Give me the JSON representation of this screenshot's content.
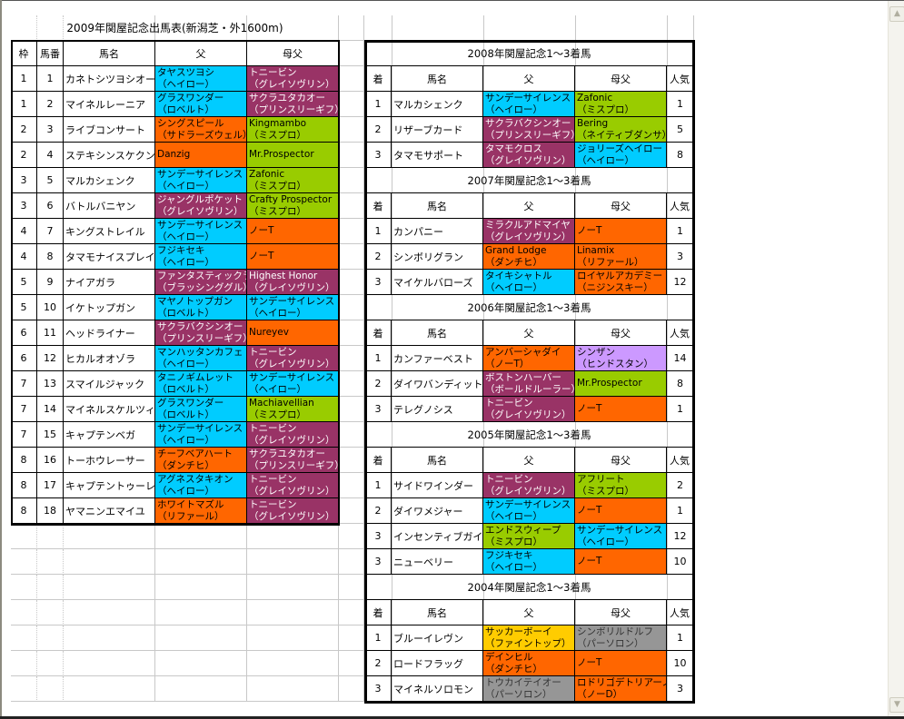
{
  "colors": {
    "B": "#00CCFF",
    "P": "#993366",
    "O": "#FF6600",
    "G": "#99CC00",
    "L": "#CC99FF",
    "Y": "#FFCC00",
    "X": "#969696"
  },
  "text_colors": {
    "B": "#000000",
    "P": "#FFFFFF",
    "O": "#000000",
    "G": "#000000",
    "L": "#000000",
    "Y": "#000000",
    "X": "#333333"
  },
  "main": {
    "title": "2009年関屋記念出馬表(新潟芝・外1600m)",
    "headers": [
      "枠",
      "馬番",
      "馬名",
      "父",
      "母父"
    ],
    "rows": [
      {
        "waku": "1",
        "num": "1",
        "name": "カネトシツヨシオー",
        "sire": [
          "タヤスツヨシ",
          "（ヘイロー）",
          "B"
        ],
        "dam_sire": [
          "トニービン",
          "（グレイソヴリン）",
          "P"
        ]
      },
      {
        "waku": "1",
        "num": "2",
        "name": "マイネルレーニア",
        "sire": [
          "グラスワンダー",
          "（ロベルト）",
          "B"
        ],
        "dam_sire": [
          "サクラユタカオー",
          "（プリンスリーギフ）",
          "P"
        ]
      },
      {
        "waku": "2",
        "num": "3",
        "name": "ライブコンサート",
        "sire": [
          "シングスピール",
          "（サドラーズウェル）",
          "O"
        ],
        "dam_sire": [
          "Kingmambo",
          "（ミスプロ）",
          "G"
        ]
      },
      {
        "waku": "2",
        "num": "4",
        "name": "ステキシンスケクン",
        "sire": [
          "Danzig",
          "",
          "O"
        ],
        "dam_sire": [
          "Mr.Prospector",
          "",
          "G"
        ]
      },
      {
        "waku": "3",
        "num": "5",
        "name": "マルカシェンク",
        "sire": [
          "サンデーサイレンス",
          "（ヘイロー）",
          "B"
        ],
        "dam_sire": [
          "Zafonic",
          "（ミスプロ）",
          "G"
        ]
      },
      {
        "waku": "3",
        "num": "6",
        "name": "バトルバニヤン",
        "sire": [
          "ジャングルポケット",
          "（グレイソヴリン）",
          "P"
        ],
        "dam_sire": [
          "Crafty Prospector",
          "（ミスプロ）",
          "G"
        ]
      },
      {
        "waku": "4",
        "num": "7",
        "name": "キングストレイル",
        "sire": [
          "サンデーサイレンス",
          "（ヘイロー）",
          "B"
        ],
        "dam_sire": [
          "ノーT",
          "",
          "O"
        ]
      },
      {
        "waku": "4",
        "num": "8",
        "name": "タマモナイスプレイ",
        "sire": [
          "フジキセキ",
          "（ヘイロー）",
          "B"
        ],
        "dam_sire": [
          "ノーT",
          "",
          "O"
        ]
      },
      {
        "waku": "5",
        "num": "9",
        "name": "ナイアガラ",
        "sire": [
          "ファンタスティックラ",
          "（ブラッシンググル）",
          "P"
        ],
        "dam_sire": [
          "Highest Honor",
          "（グレイソヴリン）",
          "P"
        ]
      },
      {
        "waku": "5",
        "num": "10",
        "name": "イケトップガン",
        "sire": [
          "マヤノトップガン",
          "（ロベルト）",
          "B"
        ],
        "dam_sire": [
          "サンデーサイレンス",
          "（ヘイロー）",
          "B"
        ]
      },
      {
        "waku": "6",
        "num": "11",
        "name": "ヘッドライナー",
        "sire": [
          "サクラバクシンオー",
          "（プリンスリーギフ）",
          "P"
        ],
        "dam_sire": [
          "Nureyev",
          "",
          "O"
        ]
      },
      {
        "waku": "6",
        "num": "12",
        "name": "ヒカルオオゾラ",
        "sire": [
          "マンハッタンカフェ",
          "（ヘイロー）",
          "B"
        ],
        "dam_sire": [
          "トニービン",
          "（グレイソヴリン）",
          "P"
        ]
      },
      {
        "waku": "7",
        "num": "13",
        "name": "スマイルジャック",
        "sire": [
          "タニノギムレット",
          "（ロベルト）",
          "B"
        ],
        "dam_sire": [
          "サンデーサイレンス",
          "（ヘイロー）",
          "B"
        ]
      },
      {
        "waku": "7",
        "num": "14",
        "name": "マイネルスケルツィ",
        "sire": [
          "グラスワンダー",
          "（ロベルト）",
          "B"
        ],
        "dam_sire": [
          "Machiavellian",
          "（ミスプロ）",
          "G"
        ]
      },
      {
        "waku": "7",
        "num": "15",
        "name": "キャプテンベガ",
        "sire": [
          "サンデーサイレンス",
          "（ヘイロー）",
          "B"
        ],
        "dam_sire": [
          "トニービン",
          "（グレイソヴリン）",
          "P"
        ]
      },
      {
        "waku": "8",
        "num": "16",
        "name": "トーホウレーサー",
        "sire": [
          "チーフベアハート",
          "（ダンチヒ）",
          "O"
        ],
        "dam_sire": [
          "サクラユタカオー",
          "（プリンスリーギフ）",
          "P"
        ]
      },
      {
        "waku": "8",
        "num": "17",
        "name": "キャプテントゥーレ",
        "sire": [
          "アグネスタキオン",
          "（ヘイロー）",
          "B"
        ],
        "dam_sire": [
          "トニービン",
          "（グレイソヴリン）",
          "P"
        ]
      },
      {
        "waku": "8",
        "num": "18",
        "name": "ヤマニンエマイユ",
        "sire": [
          "ホワイトマズル",
          "（リファール）",
          "O"
        ],
        "dam_sire": [
          "トニービン",
          "（グレイソヴリン）",
          "P"
        ]
      }
    ]
  },
  "past": {
    "headers": [
      "着",
      "馬名",
      "父",
      "母父",
      "人気"
    ],
    "years": [
      {
        "title": "2008年関屋記念1～3着馬",
        "rows": [
          {
            "pos": "1",
            "name": "マルカシェンク",
            "sire": [
              "サンデーサイレンス",
              "（ヘイロー）",
              "B"
            ],
            "dam_sire": [
              "Zafonic",
              "（ミスプロ）",
              "G"
            ],
            "pop": "1"
          },
          {
            "pos": "2",
            "name": "リザーブカード",
            "sire": [
              "サクラバクシンオー",
              "（プリンスリーギフ）",
              "P"
            ],
            "dam_sire": [
              "Bering",
              "（ネイティブダンサ）",
              "G"
            ],
            "pop": "5"
          },
          {
            "pos": "3",
            "name": "タマモサポート",
            "sire": [
              "タマモクロス",
              "（グレイソヴリン）",
              "P"
            ],
            "dam_sire": [
              "ジョリーズヘイロー",
              "（ヘイロー）",
              "B"
            ],
            "pop": "8"
          }
        ]
      },
      {
        "title": "2007年関屋記念1～3着馬",
        "rows": [
          {
            "pos": "1",
            "name": "カンパニー",
            "sire": [
              "ミラクルアドマイヤ",
              "（グレイソヴリン）",
              "P"
            ],
            "dam_sire": [
              "ノーT",
              "",
              "O"
            ],
            "pop": "1"
          },
          {
            "pos": "2",
            "name": "シンボリグラン",
            "sire": [
              "Grand Lodge",
              "（ダンチヒ）",
              "O"
            ],
            "dam_sire": [
              "Linamix",
              "（リファール）",
              "O"
            ],
            "pop": "3"
          },
          {
            "pos": "3",
            "name": "マイケルバローズ",
            "sire": [
              "タイキシャトル",
              "（ヘイロー）",
              "B"
            ],
            "dam_sire": [
              "ロイヤルアカデミー",
              "（ニジンスキー）",
              "O"
            ],
            "pop": "12"
          }
        ]
      },
      {
        "title": "2006年関屋記念1～3着馬",
        "rows": [
          {
            "pos": "1",
            "name": "カンファーベスト",
            "sire": [
              "アンバーシャダイ",
              "（ノーT）",
              "O"
            ],
            "dam_sire": [
              "シンザン",
              "（ヒンドスタン）",
              "L"
            ],
            "pop": "14"
          },
          {
            "pos": "2",
            "name": "ダイワバンディット",
            "sire": [
              "ボストンハーバー",
              "（ボールドルーラー）",
              "P"
            ],
            "dam_sire": [
              "Mr.Prospector",
              "",
              "G"
            ],
            "pop": "8"
          },
          {
            "pos": "3",
            "name": "テレグノシス",
            "sire": [
              "トニービン",
              "（グレイソヴリン）",
              "P"
            ],
            "dam_sire": [
              "ノーT",
              "",
              "O"
            ],
            "pop": "1"
          }
        ]
      },
      {
        "title": "2005年関屋記念1～3着馬",
        "rows": [
          {
            "pos": "1",
            "name": "サイドワインダー",
            "sire": [
              "トニービン",
              "（グレイソヴリン）",
              "P"
            ],
            "dam_sire": [
              "アフリート",
              "（ミスプロ）",
              "G"
            ],
            "pop": "2"
          },
          {
            "pos": "2",
            "name": "ダイワメジャー",
            "sire": [
              "サンデーサイレンス",
              "（ヘイロー）",
              "B"
            ],
            "dam_sire": [
              "ノーT",
              "",
              "O"
            ],
            "pop": "1"
          },
          {
            "pos": "3",
            "name": "インセンティブガイ",
            "sire": [
              "エンドスウィープ",
              "（ミスプロ）",
              "G"
            ],
            "dam_sire": [
              "サンデーサイレンス",
              "（ヘイロー）",
              "B"
            ],
            "pop": "12"
          },
          {
            "pos": "3",
            "name": "ニューベリー",
            "sire": [
              "フジキセキ",
              "（ヘイロー）",
              "B"
            ],
            "dam_sire": [
              "ノーT",
              "",
              "O"
            ],
            "pop": "10"
          }
        ]
      },
      {
        "title": "2004年関屋記念1～3着馬",
        "rows": [
          {
            "pos": "1",
            "name": "ブルーイレヴン",
            "sire": [
              "サッカーボーイ",
              "（ファイントップ）",
              "Y"
            ],
            "dam_sire": [
              "シンボリルドルフ",
              "（パーソロン）",
              "X"
            ],
            "pop": "1"
          },
          {
            "pos": "2",
            "name": "ロードフラッグ",
            "sire": [
              "デインヒル",
              "（ダンチヒ）",
              "O"
            ],
            "dam_sire": [
              "ノーT",
              "",
              "O"
            ],
            "pop": "10"
          },
          {
            "pos": "3",
            "name": "マイネルソロモン",
            "sire": [
              "トウカイテイオー",
              "（パーソロン）",
              "X"
            ],
            "dam_sire": [
              "ロドリゴデトリアーノ",
              "（ノーD）",
              "O"
            ],
            "pop": "3"
          }
        ]
      }
    ]
  },
  "scrollbar": {
    "up_icon": "chevron-up-icon",
    "down_icon": "chevron-down-icon"
  }
}
